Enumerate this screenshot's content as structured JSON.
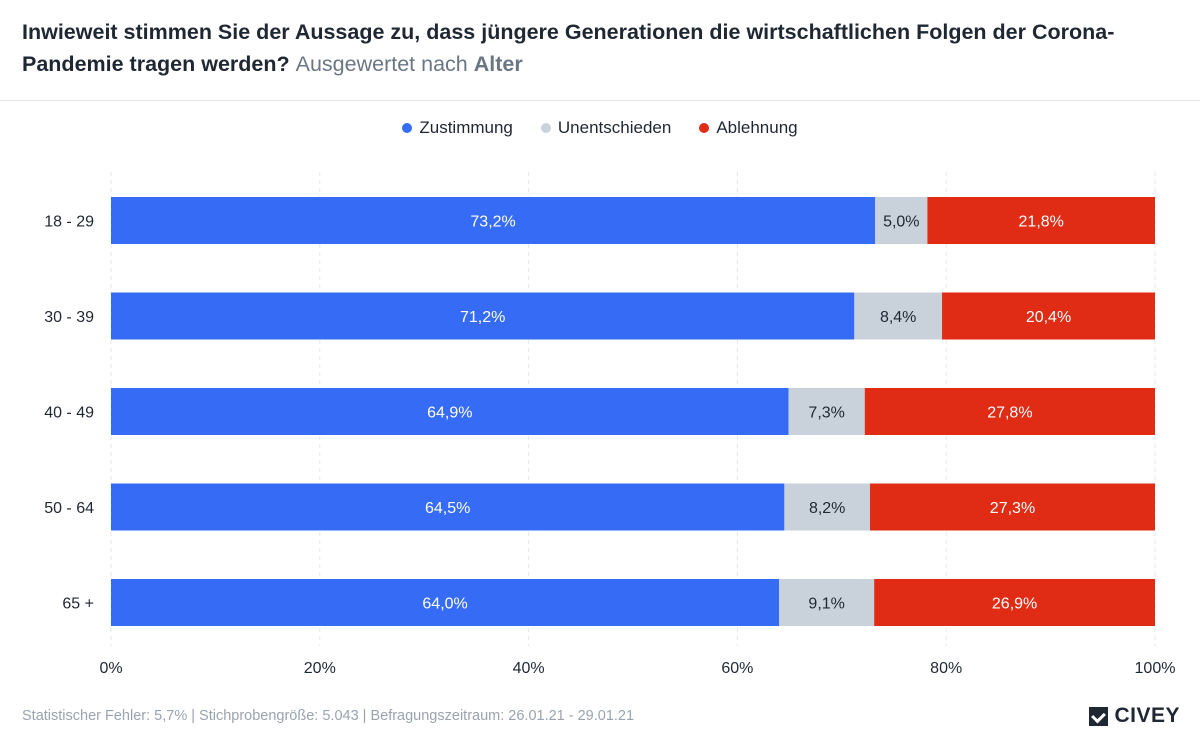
{
  "header": {
    "question": "Inwieweit stimmen Sie der Aussage zu, dass jüngere Generationen die wirtschaftlichen Folgen der Corona-Pandemie tragen werden?",
    "subtitle_prefix": "Ausgewertet nach",
    "subtitle_group": "Alter"
  },
  "colors": {
    "zustimmung": "#356bf5",
    "unentschieden": "#c9d2db",
    "ablehnung": "#e02b15",
    "grid": "#e4e7eb"
  },
  "chart_data": {
    "type": "bar",
    "orientation": "horizontal",
    "stacked": true,
    "categories": [
      "18 - 29",
      "30 - 39",
      "40 - 49",
      "50 - 64",
      "65 +"
    ],
    "series": [
      {
        "name": "Zustimmung",
        "values": [
          73.2,
          71.2,
          64.9,
          64.5,
          64.0
        ],
        "labels": [
          "73,2%",
          "71,2%",
          "64,9%",
          "64,5%",
          "64,0%"
        ]
      },
      {
        "name": "Unentschieden",
        "values": [
          5.0,
          8.4,
          7.3,
          8.2,
          9.1
        ],
        "labels": [
          "5,0%",
          "8,4%",
          "7,3%",
          "8,2%",
          "9,1%"
        ]
      },
      {
        "name": "Ablehnung",
        "values": [
          21.8,
          20.4,
          27.8,
          27.3,
          26.9
        ],
        "labels": [
          "21,8%",
          "20,4%",
          "27,8%",
          "27,3%",
          "26,9%"
        ]
      }
    ],
    "xlim": [
      0,
      100
    ],
    "xticks": [
      "0%",
      "20%",
      "40%",
      "60%",
      "80%",
      "100%"
    ],
    "grid": true,
    "legend": "top-center"
  },
  "footer": {
    "text": "Statistischer Fehler: 5,7% | Stichprobengröße: 5.043 | Befragungszeitraum: 26.01.21 - 29.01.21",
    "logo": "CIVEY"
  }
}
